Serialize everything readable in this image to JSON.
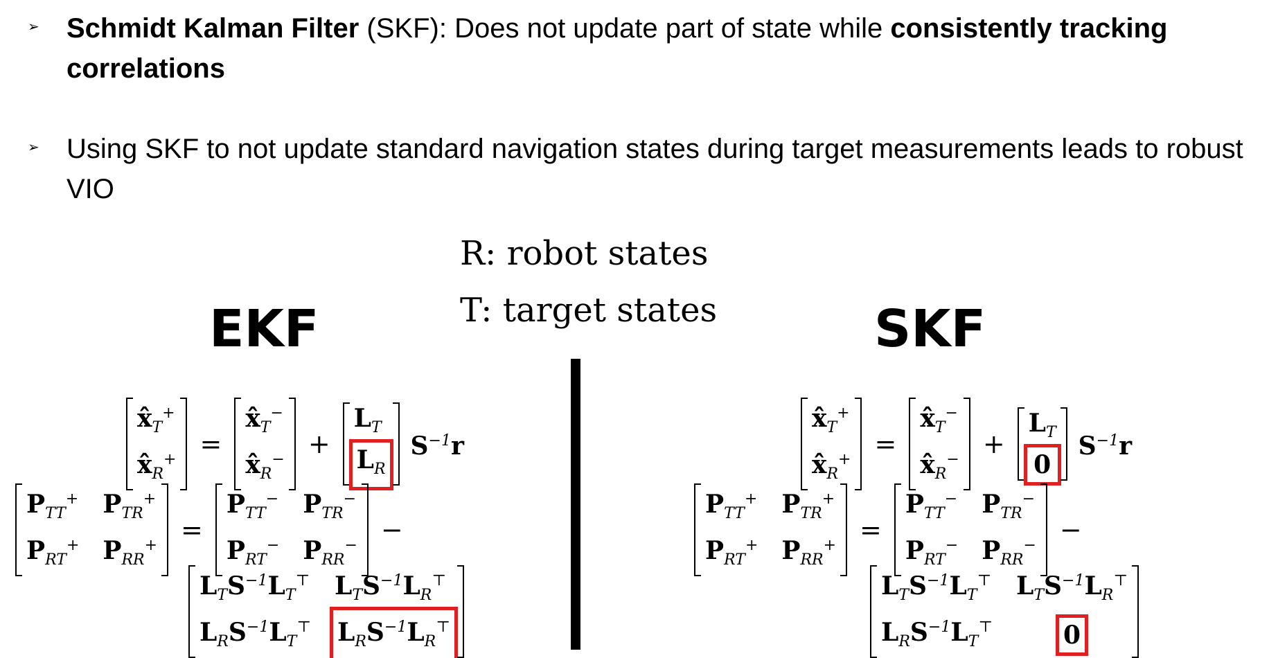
{
  "bullets": [
    {
      "marker": "➢",
      "parts": {
        "bold1": "Schmidt Kalman Filter",
        "normal1": " (SKF): Does not update part of state while ",
        "bold2": "consistently tracking correlations"
      }
    },
    {
      "marker": "➢",
      "text": "Using SKF to not update standard navigation states during target measurements leads to robust VIO"
    }
  ],
  "legend": {
    "robot": "R: robot states",
    "target": "T: target states"
  },
  "panels": {
    "ekf": {
      "heading": "EKF",
      "highlight_color": "#e02020"
    },
    "skf": {
      "heading": "SKF",
      "zero": "0"
    }
  },
  "math_symbols": {
    "x": "x̂",
    "P": "P",
    "L": "L",
    "S": "S",
    "r": "r",
    "plus": "+",
    "minus": "−",
    "equals": "=",
    "inv": "−1",
    "T": "T",
    "R": "R",
    "TT": "TT",
    "TR": "TR",
    "RT": "RT",
    "RR": "RR",
    "transpose": "⊤"
  }
}
